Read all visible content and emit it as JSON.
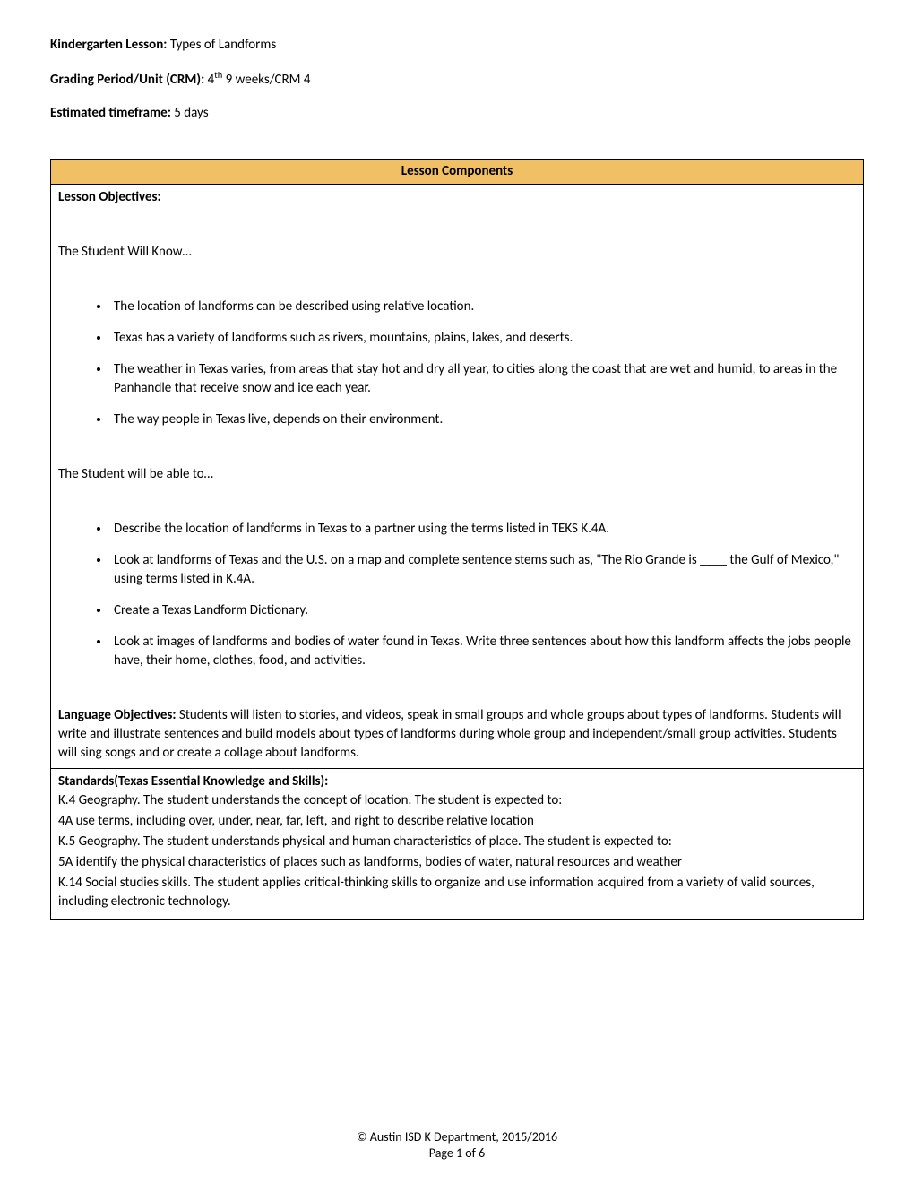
{
  "header": {
    "lesson_label": "Kindergarten Lesson:",
    "lesson_value": " Types of Landforms",
    "grading_label": "Grading Period/Unit (CRM):",
    "grading_value_pre": " 4",
    "grading_value_sup": "th",
    "grading_value_post": " 9 weeks/CRM 4",
    "timeframe_label": "Estimated timeframe:",
    "timeframe_value": "  5 days"
  },
  "table": {
    "title": "Lesson Components",
    "objectives_label": "Lesson Objectives:",
    "know_intro": "The Student Will Know…",
    "know_items": [
      "The location of landforms can be described using relative location.",
      "Texas has a variety of landforms such as rivers, mountains, plains, lakes, and deserts.",
      "The weather in Texas varies, from areas that stay hot and dry all year, to cities along the coast that are wet and humid, to areas in the Panhandle that receive snow and ice each year.",
      "The way people in Texas live, depends on their environment."
    ],
    "able_intro": "The Student will be able to…",
    "able_items": [
      "Describe the location of landforms in Texas to a partner using the terms listed in TEKS K.4A.",
      "Look at landforms of Texas and the U.S. on a map and complete sentence stems such as, \"The Rio Grande is ____ the Gulf of Mexico,\" using terms listed in K.4A.",
      "Create a Texas Landform Dictionary.",
      "Look at images of landforms and bodies of water found in Texas.  Write three sentences about how this landform affects the jobs people have, their home, clothes, food, and activities."
    ],
    "lang_label": "Language Objectives:",
    "lang_text": "  Students will listen to stories, and videos, speak in small groups and whole groups about types of landforms.  Students will write and illustrate sentences and build models about types of landforms during whole group and independent/small group activities. Students will sing songs and or create a collage about landforms.",
    "standards_label": "Standards(Texas Essential Knowledge and Skills):",
    "standards_lines": [
      "K.4 Geography. The student understands the concept of location. The student is expected to:",
      "4A use terms, including over, under, near, far, left, and right to describe relative location",
      "K.5 Geography. The student understands physical and human characteristics of place. The student is expected to:",
      "5A identify the physical characteristics of places such as landforms, bodies of water, natural resources and weather",
      "K.14 Social studies skills.  The student applies critical-thinking skills to organize and use information acquired from a variety of valid sources, including electronic technology."
    ]
  },
  "footer": {
    "copyright": "© Austin ISD K Department, 2015/2016",
    "page": "Page 1 of 6"
  },
  "colors": {
    "header_bg": "#f2c064",
    "border": "#000000",
    "text": "#000000",
    "bg": "#ffffff"
  }
}
